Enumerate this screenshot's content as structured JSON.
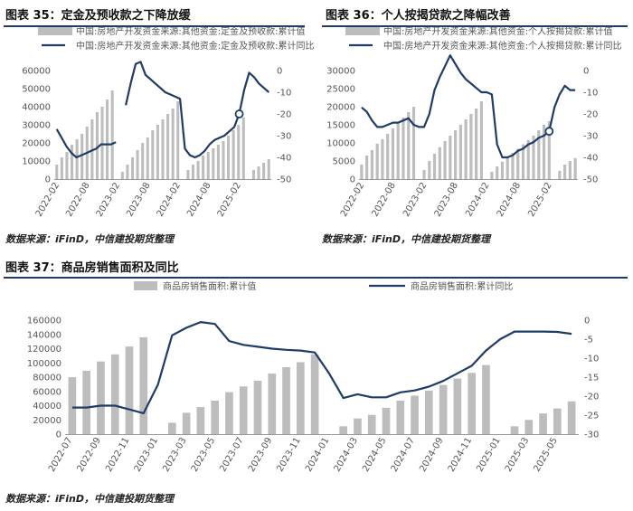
{
  "colors": {
    "bar": "#bdbdbd",
    "line": "#1f3c66",
    "accent": "#1f3c66"
  },
  "sources": [
    "数据来源：iFinD，中信建投期货整理",
    "数据来源：iFinD，中信建投期货整理",
    "数据来源：iFinD，中信建投期货整理"
  ],
  "chart_data": [
    {
      "id": "c35",
      "type": "bar+line",
      "title": "图表 35：定金及预收款之下降放缓",
      "legend": [
        "中国:房地产开发资金来源:其他资金:定金及预收款:累计值",
        "中国:房地产开发资金来源:其他资金:定金及预收款:累计同比"
      ],
      "x_ticks": [
        "2022-02",
        "2022-08",
        "2023-02",
        "2023-08",
        "2024-02",
        "2024-08",
        "2025-02"
      ],
      "yleft_ticks": [
        0,
        10000,
        20000,
        30000,
        40000,
        50000,
        60000
      ],
      "yright_ticks": [
        0,
        -10,
        -20,
        -30,
        -40,
        -50
      ],
      "ylim_left": [
        0,
        60000
      ],
      "ylim_right": [
        -50,
        0
      ],
      "bars": [
        8000,
        12000,
        15000,
        19000,
        22000,
        25000,
        29000,
        33000,
        37000,
        40000,
        44000,
        49000,
        null,
        4000,
        8000,
        12000,
        16000,
        20000,
        23000,
        27000,
        30000,
        33000,
        36000,
        39000,
        43000,
        null,
        5000,
        8000,
        10000,
        13000,
        15000,
        17000,
        19000,
        21000,
        24000,
        27000,
        30000,
        34000,
        null,
        5000,
        7000,
        9000,
        11000
      ],
      "line": [
        -27,
        -31,
        -35,
        -38,
        -40,
        -39,
        -38,
        -37,
        -36,
        -34,
        -34,
        -34,
        -33,
        null,
        -16,
        -6,
        3,
        4,
        -2,
        -4,
        -6,
        -8,
        -10,
        -11,
        -12,
        -13,
        -36,
        -39,
        -40,
        -39,
        -37,
        -34,
        -32,
        -31,
        -30,
        -28,
        -26,
        -20,
        -9,
        -1,
        -3,
        -6,
        -8,
        -10
      ]
    },
    {
      "id": "c36",
      "type": "bar+line",
      "title": "图表 36：个人按揭贷款之降幅改善",
      "legend": [
        "中国:房地产开发资金来源:其他资金:个人按揭贷款:累计值",
        "中国:房地产开发资金来源:其他资金:个人按揭贷款:累计同比"
      ],
      "x_ticks": [
        "2022-02",
        "2022-08",
        "2023-02",
        "2023-08",
        "2024-02",
        "2024-08",
        "2025-02"
      ],
      "yleft_ticks": [
        0,
        5000,
        10000,
        15000,
        20000,
        25000,
        30000
      ],
      "yright_ticks": [
        0,
        -10,
        -20,
        -30,
        -40,
        -50
      ],
      "ylim_left": [
        0,
        30000
      ],
      "ylim_right": [
        -50,
        0
      ],
      "bars": [
        4000,
        6500,
        8000,
        9800,
        11000,
        12500,
        14000,
        15500,
        17000,
        18500,
        20000,
        null,
        2500,
        5000,
        7000,
        8800,
        10500,
        12000,
        13500,
        15000,
        16500,
        18000,
        19500,
        21500,
        null,
        2000,
        3500,
        4800,
        6000,
        7200,
        8400,
        9600,
        10800,
        12000,
        13500,
        15000,
        16000,
        null,
        2300,
        4000,
        5000,
        5800
      ],
      "line": [
        -17,
        -19,
        -23,
        -26,
        -26,
        -25,
        -24,
        -24,
        -23,
        -22,
        -25,
        -26,
        -26,
        -20,
        -9,
        -3,
        2,
        7,
        3,
        -1,
        -4,
        -6,
        -8,
        -10,
        -10,
        -11,
        -34,
        -40,
        -40,
        -39,
        -37,
        -36,
        -34,
        -33,
        -31,
        -30,
        -28,
        -17,
        -11,
        -7,
        -9,
        -9
      ]
    },
    {
      "id": "c37",
      "type": "bar+line",
      "title": "图表 37：商品房销售面积及同比",
      "legend": [
        "商品房销售面积:累计值",
        "商品房销售面积:累计同比"
      ],
      "x_ticks": [
        "2022-07",
        "2022-09",
        "2022-11",
        "2023-01",
        "2023-03",
        "2023-05",
        "2023-07",
        "2023-09",
        "2023-11",
        "2024-01",
        "2024-03",
        "2024-05",
        "2024-07",
        "2024-09",
        "2024-11",
        "2025-01",
        "2025-03",
        "2025-05"
      ],
      "yleft_ticks": [
        0,
        20000,
        40000,
        60000,
        80000,
        100000,
        120000,
        140000,
        160000
      ],
      "yright_ticks": [
        0,
        -5,
        -10,
        -15,
        -20,
        -25,
        -30
      ],
      "ylim_left": [
        0,
        160000
      ],
      "ylim_right": [
        -30,
        0
      ],
      "bars": [
        80000,
        89000,
        102000,
        112000,
        123000,
        136000,
        null,
        16000,
        30000,
        38000,
        47000,
        59000,
        67000,
        75000,
        85000,
        94000,
        101000,
        112000,
        null,
        11000,
        22000,
        27000,
        37000,
        47000,
        54000,
        61000,
        69000,
        78000,
        86000,
        97000,
        null,
        11000,
        20000,
        29000,
        36000,
        46000
      ],
      "line": [
        -23,
        -23,
        -22.5,
        -22.5,
        -23.5,
        -24.5,
        -17,
        -4,
        -2,
        -0.5,
        -1,
        -5.5,
        -6.5,
        -7,
        -7.5,
        -7.8,
        -8,
        -8.5,
        -14,
        -20.5,
        -19.5,
        -20.3,
        -20.3,
        -19,
        -18.5,
        -17.5,
        -16,
        -14,
        -12,
        -8,
        -5,
        -3,
        -3,
        -3,
        -3.1,
        -3.6
      ]
    }
  ]
}
